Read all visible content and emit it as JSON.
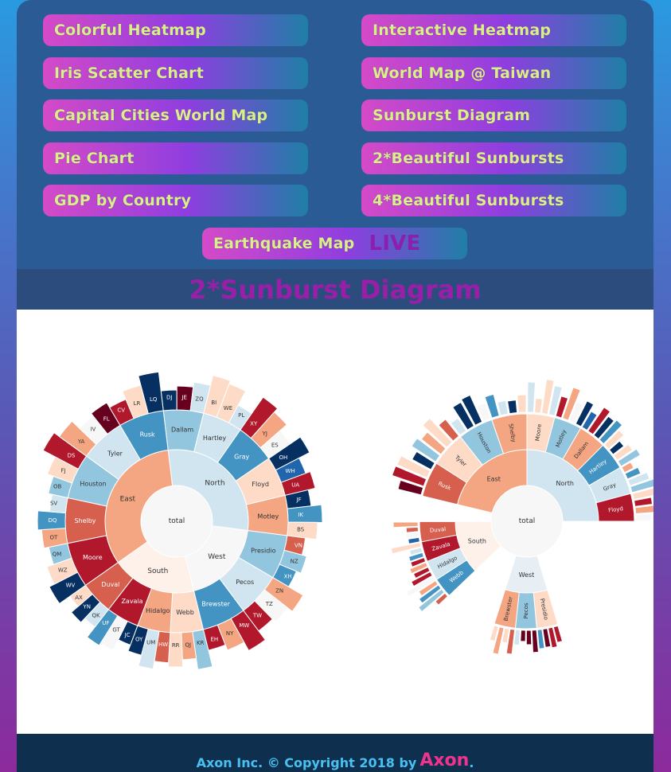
{
  "nav": {
    "colorful_heatmap": "Colorful Heatmap",
    "interactive_heatmap": "Interactive Heatmap",
    "iris_scatter": "Iris Scatter Chart",
    "world_map_taiwan": "World Map @ Taiwan",
    "capital_cities": "Capital Cities World Map",
    "sunburst_diagram": "Sunburst Diagram",
    "pie_chart": "Pie Chart",
    "two_sunbursts": "2*Beautiful Sunbursts",
    "gdp_by_country": "GDP by Country",
    "four_sunbursts": "4*Beautiful Sunbursts",
    "earthquake_map": "Earthquake Map",
    "live_label": "LIVE"
  },
  "page_title": "2*Sunburst Diagram",
  "footer": {
    "text": "Axon Inc. © Copyright 2018 by",
    "brand": "Axon",
    "dot": "."
  },
  "colors": {
    "nav_text": "#d8f08a",
    "title": "#9a1fa8",
    "footer_text": "#48c0f0",
    "footer_brand": "#f0348e",
    "palette_rdbu": [
      "#67001f",
      "#b2182b",
      "#d6604d",
      "#f4a582",
      "#fddbc7",
      "#f7f7f7",
      "#d1e5f0",
      "#92c5de",
      "#4393c3",
      "#2166ac",
      "#053061"
    ]
  },
  "chart_data": [
    {
      "type": "sunburst",
      "variant": "full",
      "root": "total",
      "regions": [
        "North",
        "East",
        "South",
        "West"
      ],
      "counties": {
        "North": [
          "Dallam",
          "Hartley",
          "Gray",
          "Floyd",
          "Motley"
        ],
        "East": [
          "Moore",
          "Shelby",
          "Houston",
          "Tyler",
          "Rusk"
        ],
        "South": [
          "Webb",
          "Hidalgo",
          "Zavala",
          "Duval"
        ],
        "West": [
          "Presidio",
          "Pecos",
          "Brewster"
        ]
      },
      "leaf_labels": [
        "DJ",
        "JE",
        "ZQ",
        "BI",
        "WE",
        "PL",
        "XY",
        "YJ",
        "ES",
        "OH",
        "WH",
        "UA",
        "JF",
        "IK",
        "BS",
        "WV",
        "WZ",
        "QM",
        "OT",
        "DQ",
        "SV",
        "OB",
        "FJ",
        "DS",
        "YA",
        "IV",
        "FL",
        "CV",
        "LR",
        "LQ",
        "KR",
        "QJ",
        "RR",
        "HW",
        "UM",
        "OY",
        "JC",
        "GT",
        "UF",
        "QK",
        "YN",
        "AX",
        "VN",
        "NZ",
        "XH",
        "ZN",
        "TZ",
        "TW",
        "MW",
        "NY",
        "EH"
      ]
    },
    {
      "type": "sunburst",
      "variant": "partial",
      "root": "total",
      "regions": [
        "North",
        "East",
        "South",
        "West"
      ],
      "counties": {
        "North": [
          "Moore",
          "Motley",
          "Dallam",
          "Hartley",
          "Gray",
          "Floyd"
        ],
        "East": [
          "Rusk",
          "Tyler",
          "Houston",
          "Shelby"
        ],
        "South": [
          "Webb",
          "Hidalgo",
          "Zavala",
          "Duval"
        ],
        "West": [
          "Presidio",
          "Pecos",
          "Brewster"
        ]
      }
    }
  ]
}
